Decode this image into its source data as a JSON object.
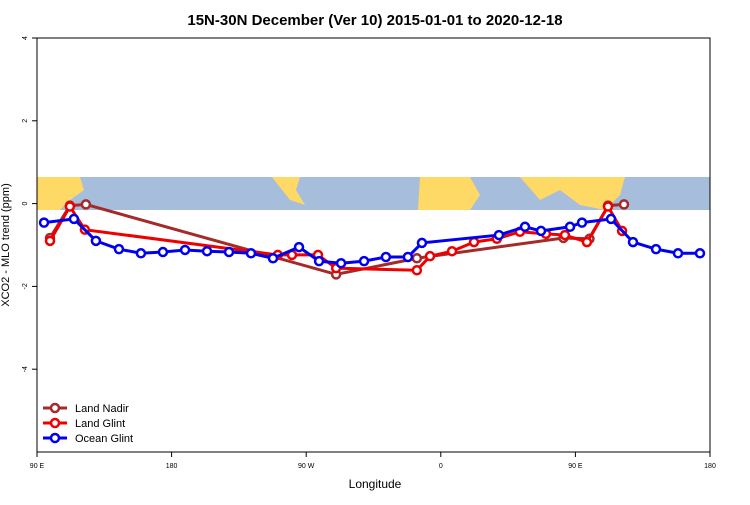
{
  "chart_data": {
    "type": "line",
    "title": "15N-30N December (Ver 10)   2015-01-01 to 2020-12-18",
    "x_label": "Longitude",
    "y_label": "XCO2 - MLO trend (ppm)",
    "xlim": [
      90,
      540
    ],
    "ylim": [
      -6,
      4
    ],
    "xticks": [
      {
        "value": 90,
        "label": "90 E"
      },
      {
        "value": 180,
        "label": "180"
      },
      {
        "value": 270,
        "label": "90 W"
      },
      {
        "value": 360,
        "label": "0"
      },
      {
        "value": 450,
        "label": "90 E"
      },
      {
        "value": 540,
        "label": "180"
      }
    ],
    "yticks": [
      -4,
      -2,
      0,
      2,
      4
    ],
    "legend": "bottom-left",
    "series": [
      {
        "name": "Land Nadir",
        "color": "#a52a2a",
        "x": [
          98.7,
          112,
          122.7,
          290,
          344,
          442,
          459.4,
          471.8,
          482.5
        ],
        "values": [
          -0.83,
          -0.05,
          -0.02,
          -1.71,
          -1.32,
          -0.83,
          -0.85,
          -0.05,
          -0.02
        ]
      },
      {
        "name": "Land Glint",
        "color": "#ee0000",
        "x": [
          98.7,
          112,
          122,
          251,
          260.5,
          277.9,
          290,
          344,
          352.8,
          367.5,
          382.2,
          397.5,
          412.9,
          430.3,
          443,
          457.7,
          471.8,
          481.2
        ],
        "values": [
          -0.9,
          -0.07,
          -0.63,
          -1.24,
          -1.24,
          -1.24,
          -1.56,
          -1.61,
          -1.27,
          -1.15,
          -0.93,
          -0.85,
          -0.68,
          -0.73,
          -0.76,
          -0.93,
          -0.07,
          -0.66
        ]
      },
      {
        "name": "Ocean Glint",
        "color": "#0000ee",
        "x": [
          94.7,
          114.7,
          129.4,
          144.8,
          159.5,
          174.2,
          189,
          203.7,
          218.4,
          233.1,
          247.8,
          265.2,
          278.6,
          293.3,
          308.7,
          323.3,
          338,
          347.4,
          398.9,
          416.3,
          427,
          446.4,
          454.4,
          473.8,
          488.5,
          503.9,
          518.6,
          533.3
        ],
        "values": [
          -0.46,
          -0.37,
          -0.9,
          -1.1,
          -1.2,
          -1.17,
          -1.12,
          -1.15,
          -1.17,
          -1.2,
          -1.32,
          -1.05,
          -1.39,
          -1.44,
          -1.39,
          -1.29,
          -1.29,
          -0.95,
          -0.76,
          -0.56,
          -0.66,
          -0.56,
          -0.46,
          -0.37,
          -0.93,
          -1.1,
          -1.2,
          -1.2
        ]
      }
    ]
  }
}
